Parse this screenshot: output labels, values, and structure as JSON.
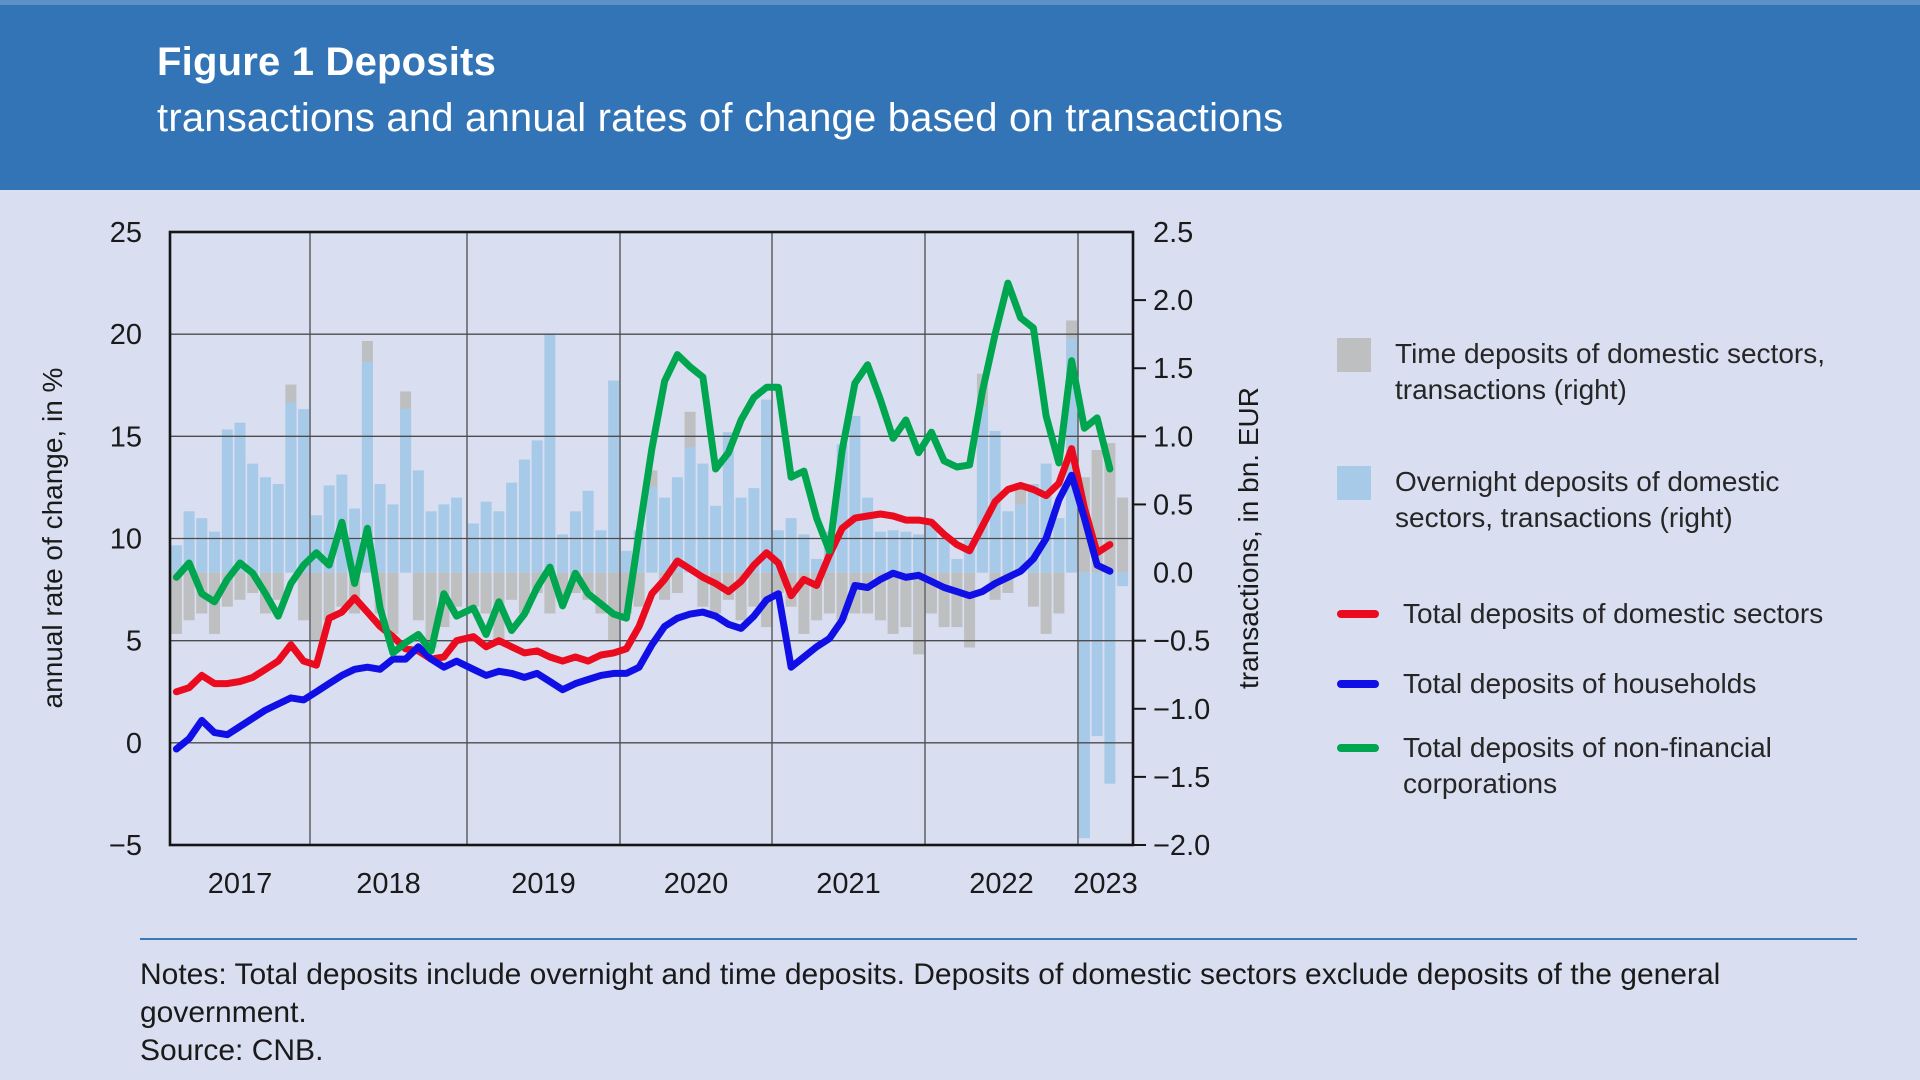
{
  "header": {
    "title": "Figure 1 Deposits",
    "subtitle": "transactions and annual rates of change based on transactions"
  },
  "legend": {
    "items": [
      {
        "name": "time-deposits-bar",
        "type": "box",
        "color": "#bdbfc1",
        "label": "Time deposits of domestic sectors,\ntransactions (right)"
      },
      {
        "name": "overnight-deposits-bar",
        "type": "box",
        "color": "#a8cae9",
        "label": "Overnight deposits of domestic\nsectors, transactions (right)"
      },
      {
        "name": "total-deposits-domestic",
        "type": "line",
        "color": "#ea0c1e",
        "label": "Total deposits of domestic sectors"
      },
      {
        "name": "total-deposits-households",
        "type": "line",
        "color": "#1010e6",
        "label": "Total deposits of households"
      },
      {
        "name": "total-deposits-nfc",
        "type": "line",
        "color": "#00a64f",
        "label": "Total deposits of non-financial\ncorporations"
      }
    ]
  },
  "notes": {
    "notes": "Notes: Total deposits include overnight and time deposits. Deposits of domestic sectors exclude deposits of the general government.",
    "source": "Source: CNB."
  },
  "colors": {
    "header_blue": "#3274b5",
    "header_strip": "#5e91c6",
    "page_bg": "#d9dff0",
    "grid": "#4c4c4c",
    "frame": "#151515",
    "text": "#1a1a1a"
  },
  "chart_data": {
    "type": "combo: monthly bars (right axis) + lines (left axis)",
    "title": "Deposits — transactions and annual rates of change based on transactions",
    "x_tick_labels": [
      "2017",
      "2018",
      "2019",
      "2020",
      "2021",
      "2022",
      "2023"
    ],
    "y_left": {
      "label": "annual rate of change, in %",
      "ticks": [
        25,
        20,
        15,
        10,
        5,
        0,
        -5
      ],
      "tick_labels": [
        "25",
        "20",
        "15",
        "10",
        "5",
        "0",
        "−5"
      ],
      "lim": [
        -5,
        25
      ]
    },
    "y_right": {
      "label": "transactions, in bn. EUR",
      "ticks": [
        2.5,
        2.0,
        1.5,
        1.0,
        0.5,
        0.0,
        -0.5,
        -1.0,
        -1.5,
        -2.0
      ],
      "tick_labels": [
        "2.5",
        "2.0",
        "1.5",
        "1.0",
        "0.5",
        "0.0",
        "−0.5",
        "−1.0",
        "−1.5",
        "−2.0"
      ],
      "lim": [
        -2.0,
        2.5
      ]
    },
    "gridlines": true,
    "legend_position": "right",
    "months": [
      "2017-02",
      "2017-03",
      "2017-04",
      "2017-05",
      "2017-06",
      "2017-07",
      "2017-08",
      "2017-09",
      "2017-10",
      "2017-11",
      "2017-12",
      "2018-01",
      "2018-02",
      "2018-03",
      "2018-04",
      "2018-05",
      "2018-06",
      "2018-07",
      "2018-08",
      "2018-09",
      "2018-10",
      "2018-11",
      "2018-12",
      "2019-01",
      "2019-02",
      "2019-03",
      "2019-04",
      "2019-05",
      "2019-06",
      "2019-07",
      "2019-08",
      "2019-09",
      "2019-10",
      "2019-11",
      "2019-12",
      "2020-01",
      "2020-02",
      "2020-03",
      "2020-04",
      "2020-05",
      "2020-06",
      "2020-07",
      "2020-08",
      "2020-09",
      "2020-10",
      "2020-11",
      "2020-12",
      "2021-01",
      "2021-02",
      "2021-03",
      "2021-04",
      "2021-05",
      "2021-06",
      "2021-07",
      "2021-08",
      "2021-09",
      "2021-10",
      "2021-11",
      "2021-12",
      "2022-01",
      "2022-02",
      "2022-03",
      "2022-04",
      "2022-05",
      "2022-06",
      "2022-07",
      "2022-08",
      "2022-09",
      "2022-10",
      "2022-11",
      "2022-12",
      "2023-01",
      "2023-02",
      "2023-03",
      "2023-04"
    ],
    "series": [
      {
        "name": "Time deposits of domestic sectors, transactions (right)",
        "type": "bar",
        "axis": "right",
        "unit": "bn EUR",
        "color": "#bdbfc1",
        "values": [
          -0.45,
          -0.35,
          -0.3,
          -0.45,
          -0.25,
          -0.2,
          -0.15,
          -0.3,
          -0.2,
          1.38,
          -0.35,
          -0.5,
          -0.35,
          -0.25,
          -0.3,
          1.7,
          -0.3,
          -0.45,
          1.33,
          -0.35,
          -0.55,
          -0.4,
          -0.25,
          -0.25,
          -0.3,
          -0.5,
          -0.2,
          -0.3,
          -0.15,
          -0.3,
          -0.2,
          -0.15,
          -0.2,
          -0.3,
          -0.5,
          -0.3,
          -0.25,
          0.75,
          -0.2,
          -0.15,
          1.18,
          -0.25,
          -0.3,
          -0.2,
          -0.35,
          -0.25,
          -0.4,
          -0.15,
          -0.25,
          -0.45,
          -0.35,
          -0.3,
          -0.35,
          -0.3,
          -0.3,
          -0.35,
          -0.45,
          -0.4,
          -0.6,
          -0.3,
          -0.4,
          -0.4,
          -0.55,
          1.46,
          -0.2,
          -0.15,
          0.62,
          -0.25,
          -0.45,
          -0.3,
          1.85,
          0.7,
          0.9,
          0.95,
          0.55
        ]
      },
      {
        "name": "Overnight deposits of domestic sectors, transactions (right)",
        "type": "bar",
        "axis": "right",
        "unit": "bn EUR",
        "color": "#a8cae9",
        "values": [
          0.2,
          0.45,
          0.4,
          0.3,
          1.05,
          1.1,
          0.8,
          0.7,
          0.65,
          1.25,
          1.2,
          0.42,
          0.64,
          0.72,
          0.47,
          1.55,
          0.65,
          0.5,
          1.2,
          0.75,
          0.45,
          0.5,
          0.55,
          0.36,
          0.52,
          0.45,
          0.66,
          0.83,
          0.97,
          1.75,
          0.28,
          0.45,
          0.6,
          0.31,
          1.41,
          0.16,
          0.31,
          0.63,
          0.55,
          0.7,
          0.92,
          0.8,
          0.49,
          1.03,
          0.55,
          0.62,
          1.27,
          0.31,
          0.4,
          0.28,
          0.1,
          0.3,
          0.94,
          1.15,
          0.55,
          0.3,
          0.31,
          0.3,
          0.28,
          0.35,
          0.25,
          0.1,
          0.24,
          1.22,
          1.04,
          0.45,
          0.5,
          0.65,
          0.8,
          0.4,
          1.72,
          -1.95,
          -1.2,
          -1.55,
          -0.1
        ]
      },
      {
        "name": "Total deposits of domestic sectors",
        "type": "line",
        "axis": "left",
        "unit": "%",
        "color": "#ea0c1e",
        "values": [
          2.5,
          2.7,
          3.3,
          2.9,
          2.9,
          3.0,
          3.2,
          3.6,
          4.0,
          4.8,
          4.0,
          3.8,
          6.1,
          6.4,
          7.1,
          6.4,
          5.7,
          5.2,
          4.6,
          4.5,
          4.1,
          4.2,
          5.0,
          5.2,
          4.7,
          5.0,
          4.7,
          4.4,
          4.5,
          4.2,
          4.0,
          4.2,
          4.0,
          4.3,
          4.4,
          4.6,
          5.7,
          7.3,
          8.0,
          8.9,
          8.5,
          8.1,
          7.8,
          7.4,
          7.9,
          8.7,
          9.3,
          8.8,
          7.2,
          8.0,
          7.7,
          9.2,
          10.5,
          11.0,
          11.1,
          11.2,
          11.1,
          10.9,
          10.9,
          10.8,
          10.2,
          9.7,
          9.4,
          10.6,
          11.8,
          12.4,
          12.6,
          12.4,
          12.1,
          12.7,
          14.4,
          11.5,
          9.3,
          9.7,
          null
        ]
      },
      {
        "name": "Total deposits of households",
        "type": "line",
        "axis": "left",
        "unit": "%",
        "color": "#1010e6",
        "values": [
          -0.3,
          0.2,
          1.1,
          0.5,
          0.4,
          0.8,
          1.2,
          1.6,
          1.9,
          2.2,
          2.1,
          2.5,
          2.9,
          3.3,
          3.6,
          3.7,
          3.6,
          4.1,
          4.1,
          4.7,
          4.1,
          3.7,
          4.0,
          3.6,
          3.3,
          3.5,
          3.4,
          3.2,
          3.4,
          3.0,
          2.6,
          2.9,
          3.1,
          3.3,
          3.4,
          3.4,
          3.7,
          4.8,
          5.7,
          6.1,
          6.3,
          6.4,
          6.2,
          5.8,
          5.6,
          6.2,
          7.0,
          7.3,
          3.7,
          4.2,
          4.7,
          5.1,
          6.0,
          7.7,
          7.6,
          8.0,
          8.3,
          8.1,
          8.2,
          7.9,
          7.6,
          7.4,
          7.2,
          7.4,
          7.8,
          8.1,
          8.4,
          9.0,
          10.0,
          11.9,
          13.1,
          11.0,
          8.7,
          8.4,
          null
        ]
      },
      {
        "name": "Total deposits of non-financial corporations",
        "type": "line",
        "axis": "left",
        "unit": "%",
        "color": "#00a64f",
        "values": [
          8.1,
          8.8,
          7.3,
          6.9,
          8.0,
          8.8,
          8.3,
          7.3,
          6.2,
          7.8,
          8.7,
          9.3,
          8.7,
          10.8,
          7.8,
          10.5,
          6.6,
          4.4,
          4.9,
          5.3,
          4.5,
          7.3,
          6.2,
          6.6,
          5.3,
          6.9,
          5.5,
          6.3,
          7.6,
          8.6,
          6.7,
          8.3,
          7.3,
          6.8,
          6.3,
          6.1,
          10.3,
          14.4,
          17.7,
          19.0,
          18.4,
          17.9,
          13.4,
          14.2,
          15.8,
          16.9,
          17.4,
          17.4,
          13.0,
          13.3,
          11.0,
          9.4,
          14.3,
          17.6,
          18.5,
          16.8,
          14.9,
          15.8,
          14.2,
          15.2,
          13.8,
          13.5,
          13.6,
          17.2,
          20.0,
          22.5,
          20.8,
          20.3,
          16.0,
          13.7,
          18.7,
          15.4,
          15.9,
          13.4,
          null
        ]
      }
    ]
  }
}
